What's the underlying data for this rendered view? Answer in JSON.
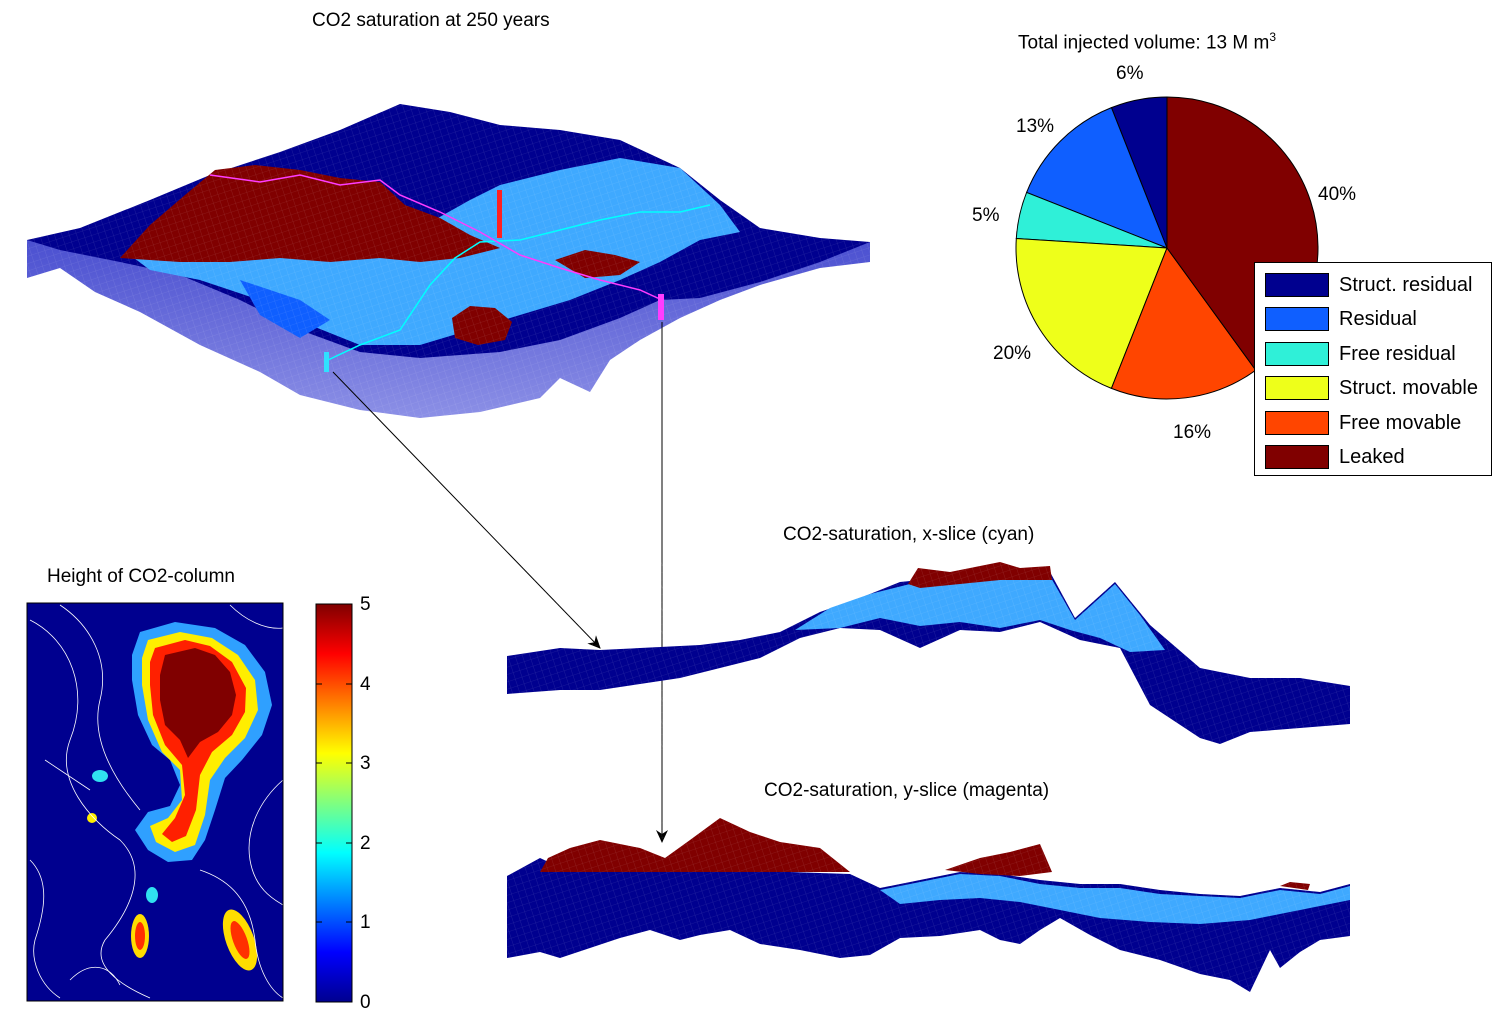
{
  "titles": {
    "main3d": "CO2 saturation at 250 years",
    "pie": "Total injected volume: 13 M m",
    "pie_sup": "3",
    "xslice": "CO2-saturation, x-slice (cyan)",
    "yslice": "CO2-saturation, y-slice (magenta)",
    "column": "Height of CO2-column"
  },
  "colors": {
    "darkblue": "#00008F",
    "blue": "#0F5FFF",
    "lightblue": "#3FA9FF",
    "cyan": "#2FF0D8",
    "yellow": "#EEFF1A",
    "orange": "#FF4500",
    "darkred": "#800000",
    "magenta": "#FF3CFF"
  },
  "chart_data": [
    {
      "type": "pie",
      "title": "Total injected volume: 13 M m^3",
      "labels": [
        "Struct. residual",
        "Residual",
        "Free residual",
        "Struct. movable",
        "Free movable",
        "Leaked"
      ],
      "values": [
        6,
        13,
        5,
        20,
        16,
        40
      ],
      "display_labels": [
        "6%",
        "13%",
        "5%",
        "20%",
        "16%",
        "40%"
      ],
      "colors": [
        "#00008F",
        "#0F5FFF",
        "#2FF0D8",
        "#EEFF1A",
        "#FF4500",
        "#800000"
      ],
      "legend": "bottom-right"
    },
    {
      "type": "heatmap",
      "title": "Height of CO2-column",
      "colorbar_ticks": [
        "0",
        "1",
        "2",
        "3",
        "4",
        "5"
      ],
      "clim": [
        0,
        5
      ]
    }
  ]
}
